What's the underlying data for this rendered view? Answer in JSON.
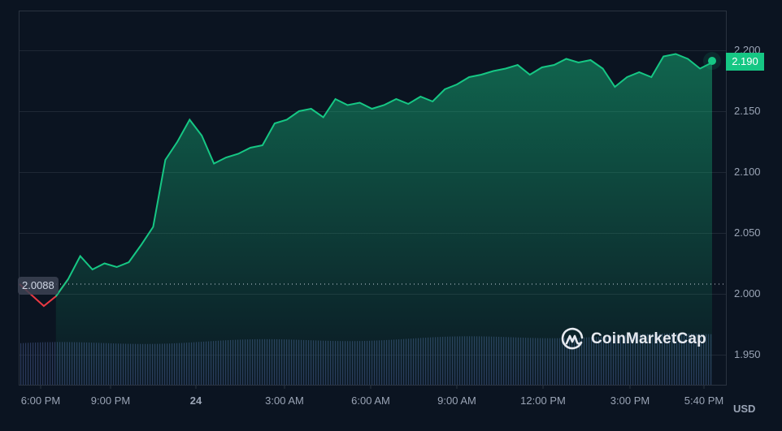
{
  "chart_data": {
    "type": "area",
    "title": "",
    "xlabel": "",
    "ylabel": "USD",
    "currency": "USD",
    "ylim": [
      1.925,
      2.225
    ],
    "grid": true,
    "y_ticks": [
      "2.200",
      "2.150",
      "2.100",
      "2.050",
      "2.000",
      "1.950"
    ],
    "x_ticks": [
      {
        "label": "6:00 PM",
        "bold": false
      },
      {
        "label": "9:00 PM",
        "bold": false
      },
      {
        "label": "24",
        "bold": true
      },
      {
        "label": "3:00 AM",
        "bold": false
      },
      {
        "label": "6:00 AM",
        "bold": false
      },
      {
        "label": "9:00 AM",
        "bold": false
      },
      {
        "label": "12:00 PM",
        "bold": false
      },
      {
        "label": "3:00 PM",
        "bold": false
      },
      {
        "label": "5:40 PM",
        "bold": false
      }
    ],
    "open_price": "2.0088",
    "current_price": "2.190",
    "series": [
      {
        "name": "Price",
        "x": [
          "5:15 PM",
          "5:45 PM",
          "6:15 PM",
          "6:45 PM",
          "7:00 PM",
          "7:15 PM",
          "7:30 PM",
          "8:00 PM",
          "8:30 PM",
          "9:00 PM",
          "9:30 PM",
          "9:45 PM",
          "10:00 PM",
          "10:15 PM",
          "10:30 PM",
          "10:45 PM",
          "11:00 PM",
          "11:15 PM",
          "11:30 PM",
          "11:45 PM",
          "12:00 AM",
          "12:30 AM",
          "1:00 AM",
          "1:30 AM",
          "2:00 AM",
          "2:30 AM",
          "3:00 AM",
          "3:30 AM",
          "4:00 AM",
          "4:30 AM",
          "5:00 AM",
          "5:30 AM",
          "6:00 AM",
          "6:30 AM",
          "7:00 AM",
          "7:30 AM",
          "8:00 AM",
          "8:30 AM",
          "9:00 AM",
          "9:30 AM",
          "10:00 AM",
          "10:30 AM",
          "11:00 AM",
          "11:30 AM",
          "12:00 PM",
          "12:30 PM",
          "1:00 PM",
          "1:30 PM",
          "2:00 PM",
          "2:15 PM",
          "2:30 PM",
          "3:00 PM",
          "3:30 PM",
          "4:00 PM",
          "4:30 PM",
          "5:00 PM",
          "5:30 PM",
          "5:40 PM"
        ],
        "values": [
          2.008,
          1.999,
          1.99,
          1.998,
          2.012,
          2.031,
          2.02,
          2.025,
          2.022,
          2.026,
          2.04,
          2.055,
          2.11,
          2.125,
          2.143,
          2.13,
          2.107,
          2.112,
          2.115,
          2.12,
          2.122,
          2.14,
          2.143,
          2.15,
          2.152,
          2.145,
          2.16,
          2.155,
          2.157,
          2.152,
          2.155,
          2.16,
          2.156,
          2.162,
          2.158,
          2.168,
          2.172,
          2.178,
          2.18,
          2.183,
          2.185,
          2.188,
          2.18,
          2.186,
          2.188,
          2.193,
          2.19,
          2.192,
          2.185,
          2.17,
          2.178,
          2.182,
          2.178,
          2.195,
          2.197,
          2.193,
          2.185,
          2.19
        ]
      }
    ],
    "volume_bars_relative": "roughly flat, slowly rising from ~0.6 to ~0.75 of volume pane height"
  },
  "branding": {
    "name": "CoinMarketCap",
    "icon": "coinmarketcap-logo-icon"
  },
  "colors": {
    "background": "#0b1421",
    "up_line": "#16c784",
    "down_line": "#ea3943",
    "grid": "#222b38",
    "volume": "#2b3a5c",
    "axis_text": "#9aa4b5"
  }
}
